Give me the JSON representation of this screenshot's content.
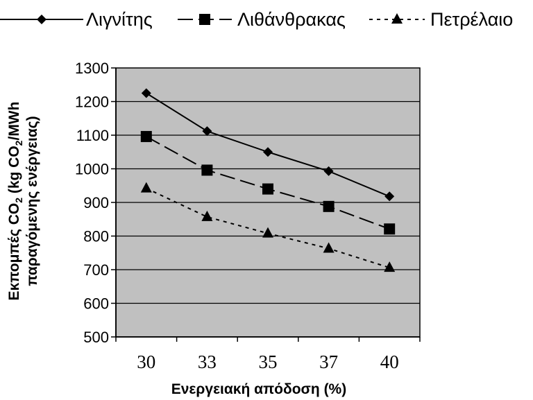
{
  "chart_data": {
    "type": "line",
    "categories": [
      "30",
      "33",
      "35",
      "37",
      "40"
    ],
    "series": [
      {
        "name": "Λιγνίτης",
        "values": [
          1225,
          1112,
          1050,
          993,
          918
        ],
        "marker": "diamond",
        "line": "solid"
      },
      {
        "name": "Λιθάνθρακας",
        "values": [
          1096,
          996,
          940,
          888,
          821
        ],
        "marker": "square",
        "line": "dashed"
      },
      {
        "name": "Πετρέλαιο",
        "values": [
          942,
          857,
          808,
          763,
          706
        ],
        "marker": "triangle",
        "line": "dotted"
      }
    ],
    "xlabel": "Ενεργειακή απόδοση (%)",
    "ylabel": {
      "line1_pre": "Εκπομπές CO",
      "line1_sub": "2",
      "line1_mid": " (kg CO",
      "line1_sub2": "2",
      "line1_post": "/MWh",
      "line2": "παραγόμενης ενέργειας)"
    },
    "ylim": [
      500,
      1300
    ],
    "yticks": [
      500,
      600,
      700,
      800,
      900,
      1000,
      1100,
      1200,
      1300
    ],
    "grid": true,
    "legend_position": "top",
    "colors": {
      "plot_background": "#c0c0c0",
      "series": "#000000",
      "gridline": "#000000"
    }
  }
}
